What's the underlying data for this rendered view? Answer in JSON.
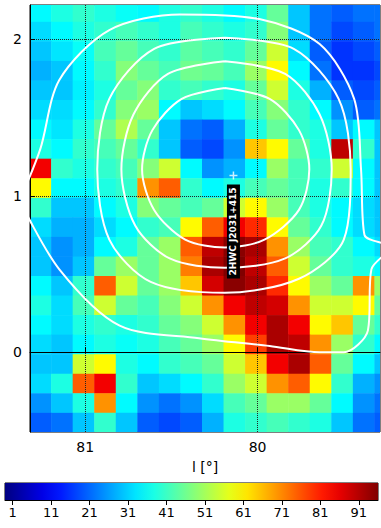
{
  "chart_data": {
    "type": "heatmap",
    "x_label": "l [°]",
    "xlim": [
      81.32,
      79.29
    ],
    "xticks": [
      81,
      80
    ],
    "ylim": [
      -0.51,
      2.22
    ],
    "yticks": [
      0,
      1,
      2
    ],
    "grid": true,
    "cells": {
      "l": [
        81.26,
        81.135,
        81.01,
        80.885,
        80.76,
        80.635,
        80.51,
        80.385,
        80.26,
        80.135,
        80.01,
        79.885,
        79.76,
        79.635,
        79.51,
        79.385,
        79.26
      ],
      "b": [
        2.175,
        2.05,
        1.925,
        1.8,
        1.675,
        1.55,
        1.425,
        1.3,
        1.175,
        1.05,
        0.925,
        0.8,
        0.675,
        0.55,
        0.425,
        0.3,
        0.175,
        0.05,
        -0.075,
        -0.2,
        -0.325,
        -0.45
      ],
      "values": [
        [
          35,
          38,
          40,
          38,
          36,
          35,
          38,
          40,
          38,
          35,
          38,
          45,
          30,
          22,
          20,
          22,
          22
        ],
        [
          32,
          35,
          38,
          40,
          42,
          40,
          38,
          42,
          40,
          38,
          40,
          48,
          30,
          22,
          18,
          20,
          22
        ],
        [
          30,
          33,
          36,
          42,
          45,
          42,
          40,
          44,
          42,
          40,
          45,
          55,
          32,
          20,
          16,
          18,
          20
        ],
        [
          28,
          30,
          35,
          40,
          48,
          45,
          42,
          46,
          45,
          42,
          50,
          60,
          35,
          22,
          16,
          16,
          18
        ],
        [
          30,
          30,
          34,
          38,
          45,
          48,
          40,
          42,
          40,
          38,
          45,
          55,
          38,
          28,
          20,
          18,
          20
        ],
        [
          32,
          32,
          35,
          40,
          48,
          50,
          35,
          30,
          32,
          35,
          42,
          48,
          40,
          35,
          25,
          20,
          22
        ],
        [
          35,
          33,
          38,
          45,
          52,
          45,
          30,
          22,
          20,
          28,
          38,
          45,
          40,
          38,
          30,
          35,
          30
        ],
        [
          38,
          35,
          40,
          42,
          45,
          40,
          30,
          20,
          18,
          25,
          65,
          60,
          45,
          38,
          90,
          40,
          30
        ],
        [
          85,
          40,
          38,
          40,
          42,
          48,
          55,
          35,
          25,
          28,
          35,
          50,
          42,
          40,
          55,
          35,
          30
        ],
        [
          60,
          35,
          35,
          38,
          40,
          70,
          75,
          40,
          35,
          38,
          42,
          45,
          42,
          38,
          40,
          35,
          30
        ],
        [
          40,
          30,
          30,
          35,
          38,
          48,
          45,
          42,
          45,
          55,
          60,
          50,
          42,
          38,
          35,
          32,
          30
        ],
        [
          32,
          28,
          28,
          32,
          35,
          40,
          42,
          60,
          75,
          85,
          80,
          60,
          45,
          40,
          35,
          32,
          30
        ],
        [
          30,
          25,
          28,
          35,
          38,
          45,
          50,
          75,
          90,
          95,
          92,
          70,
          50,
          42,
          40,
          35,
          32
        ],
        [
          30,
          25,
          30,
          45,
          50,
          45,
          50,
          72,
          92,
          96,
          90,
          75,
          55,
          45,
          40,
          38,
          35
        ],
        [
          35,
          30,
          40,
          75,
          55,
          45,
          50,
          65,
          88,
          95,
          92,
          80,
          60,
          50,
          45,
          70,
          50
        ],
        [
          38,
          32,
          42,
          55,
          45,
          42,
          48,
          55,
          70,
          85,
          90,
          88,
          70,
          55,
          55,
          60,
          45
        ],
        [
          35,
          32,
          38,
          40,
          38,
          40,
          45,
          48,
          55,
          70,
          85,
          92,
          85,
          60,
          65,
          45,
          40
        ],
        [
          32,
          30,
          35,
          38,
          36,
          38,
          42,
          45,
          50,
          60,
          78,
          92,
          90,
          70,
          50,
          40,
          35
        ],
        [
          30,
          30,
          55,
          60,
          38,
          35,
          40,
          42,
          45,
          55,
          65,
          85,
          92,
          75,
          45,
          35,
          30
        ],
        [
          32,
          38,
          75,
          85,
          40,
          30,
          32,
          35,
          40,
          50,
          55,
          70,
          75,
          60,
          40,
          28,
          25
        ],
        [
          25,
          30,
          38,
          70,
          35,
          25,
          22,
          25,
          32,
          42,
          45,
          50,
          50,
          45,
          35,
          25,
          22
        ],
        [
          20,
          22,
          30,
          40,
          30,
          20,
          18,
          20,
          28,
          38,
          40,
          42,
          40,
          38,
          30,
          22,
          20
        ]
      ]
    },
    "colorbar": {
      "range": [
        -1,
        96
      ],
      "ticks": [
        1,
        11,
        21,
        31,
        41,
        51,
        61,
        71,
        81,
        91
      ]
    },
    "contours": [
      [
        [
          80.19,
          1.69
        ],
        [
          79.93,
          1.62
        ],
        [
          79.76,
          1.42
        ],
        [
          79.7,
          1.17
        ],
        [
          79.76,
          0.91
        ],
        [
          79.96,
          0.72
        ],
        [
          80.19,
          0.67
        ],
        [
          80.42,
          0.72
        ],
        [
          80.6,
          0.91
        ],
        [
          80.67,
          1.17
        ],
        [
          80.61,
          1.42
        ],
        [
          80.44,
          1.62
        ],
        [
          80.19,
          1.69
        ]
      ],
      [
        [
          80.19,
          1.86
        ],
        [
          79.84,
          1.78
        ],
        [
          79.64,
          1.52
        ],
        [
          79.57,
          1.17
        ],
        [
          79.63,
          0.81
        ],
        [
          79.84,
          0.6
        ],
        [
          80.19,
          0.54
        ],
        [
          80.51,
          0.6
        ],
        [
          80.71,
          0.81
        ],
        [
          80.79,
          1.17
        ],
        [
          80.72,
          1.52
        ],
        [
          80.52,
          1.78
        ],
        [
          80.19,
          1.86
        ]
      ],
      [
        [
          80.19,
          2.01
        ],
        [
          79.79,
          1.94
        ],
        [
          79.53,
          1.62
        ],
        [
          79.46,
          1.17
        ],
        [
          79.5,
          0.72
        ],
        [
          79.76,
          0.47
        ],
        [
          80.19,
          0.38
        ],
        [
          80.62,
          0.45
        ],
        [
          80.86,
          0.72
        ],
        [
          80.93,
          1.17
        ],
        [
          80.86,
          1.62
        ],
        [
          80.6,
          1.94
        ],
        [
          80.19,
          2.01
        ]
      ],
      [
        [
          81.38,
          0.97
        ],
        [
          81.26,
          1.3
        ],
        [
          81.15,
          1.74
        ],
        [
          80.86,
          2.06
        ],
        [
          80.45,
          2.16
        ],
        [
          79.99,
          2.13
        ],
        [
          79.64,
          1.97
        ],
        [
          79.44,
          1.62
        ],
        [
          79.4,
          1.17
        ],
        [
          79.38,
          0.75
        ],
        [
          79.23,
          0.67
        ],
        [
          79.34,
          0.53
        ],
        [
          79.36,
          0.14
        ],
        [
          79.5,
          0.0
        ],
        [
          79.64,
          0.0
        ],
        [
          79.93,
          0.04
        ],
        [
          80.34,
          0.09
        ],
        [
          80.8,
          0.17
        ],
        [
          81.15,
          0.53
        ],
        [
          81.38,
          0.97
        ]
      ]
    ],
    "sources": [
      {
        "name": "2HWC J2031+415",
        "l": 80.14,
        "b": 1.13,
        "marker": "plus"
      }
    ]
  }
}
